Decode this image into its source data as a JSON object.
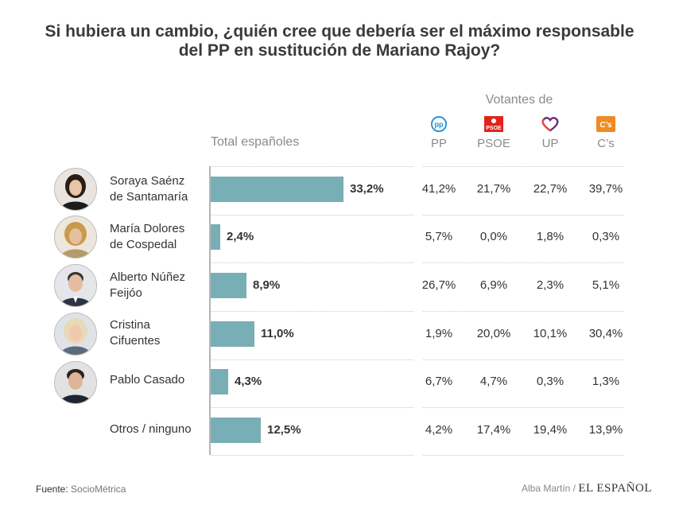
{
  "title_lines": [
    "Si hubiera un cambio, ¿quién cree que debería ser el máximo responsable",
    "del PP en sustitución de Mariano Rajoy?"
  ],
  "header": {
    "votantes_de": "Votantes de",
    "total_label": "Total españoles",
    "parties": [
      {
        "name": "PP",
        "color": "#1e90d6",
        "icon": "pp-logo-icon"
      },
      {
        "name": "PSOE",
        "color": "#e2231a",
        "icon": "psoe-logo-icon",
        "logo_text": "PSOE"
      },
      {
        "name": "UP",
        "color": "#6b2c7a",
        "icon": "up-logo-icon"
      },
      {
        "name": "C’s",
        "color": "#f08a24",
        "icon": "cs-logo-icon",
        "logo_text": "C’s"
      }
    ]
  },
  "chart_data": {
    "type": "bar",
    "orientation": "horizontal",
    "title": "Si hubiera un cambio, ¿quién cree que debería ser el máximo responsable del PP en sustitución de Mariano Rajoy?",
    "series_name": "Total españoles",
    "bar_color": "#78aeb5",
    "xlim": [
      0,
      33.2
    ],
    "categories": [
      {
        "lines": [
          "Soraya Saénz",
          "de Santamaría"
        ],
        "photo": true
      },
      {
        "lines": [
          "María Dolores",
          "de Cospedal"
        ],
        "photo": true
      },
      {
        "lines": [
          "Alberto Núñez",
          "Feijóo"
        ],
        "photo": true
      },
      {
        "lines": [
          "Cristina",
          "Cifuentes"
        ],
        "photo": true
      },
      {
        "lines": [
          "Pablo Casado"
        ],
        "photo": true
      },
      {
        "lines": [
          "Otros / ninguno"
        ],
        "photo": false
      }
    ],
    "values": [
      33.2,
      2.4,
      8.9,
      11.0,
      4.3,
      12.5
    ],
    "value_labels": [
      "33,2%",
      "2,4%",
      "8,9%",
      "11,0%",
      "4,3%",
      "12,5%"
    ],
    "table": {
      "columns": [
        "PP",
        "PSOE",
        "UP",
        "C’s"
      ],
      "rows": [
        [
          "41,2%",
          "21,7%",
          "22,7%",
          "39,7%"
        ],
        [
          "5,7%",
          "0,0%",
          "1,8%",
          "0,3%"
        ],
        [
          "26,7%",
          "6,9%",
          "2,3%",
          "5,1%"
        ],
        [
          "1,9%",
          "20,0%",
          "10,1%",
          "30,4%"
        ],
        [
          "6,7%",
          "4,7%",
          "0,3%",
          "1,3%"
        ],
        [
          "4,2%",
          "17,4%",
          "19,4%",
          "13,9%"
        ]
      ]
    }
  },
  "footer": {
    "source_label": "Fuente:",
    "source": "SocioMétrica",
    "author": "Alba Martín /",
    "brand": "EL ESPAÑOL"
  }
}
